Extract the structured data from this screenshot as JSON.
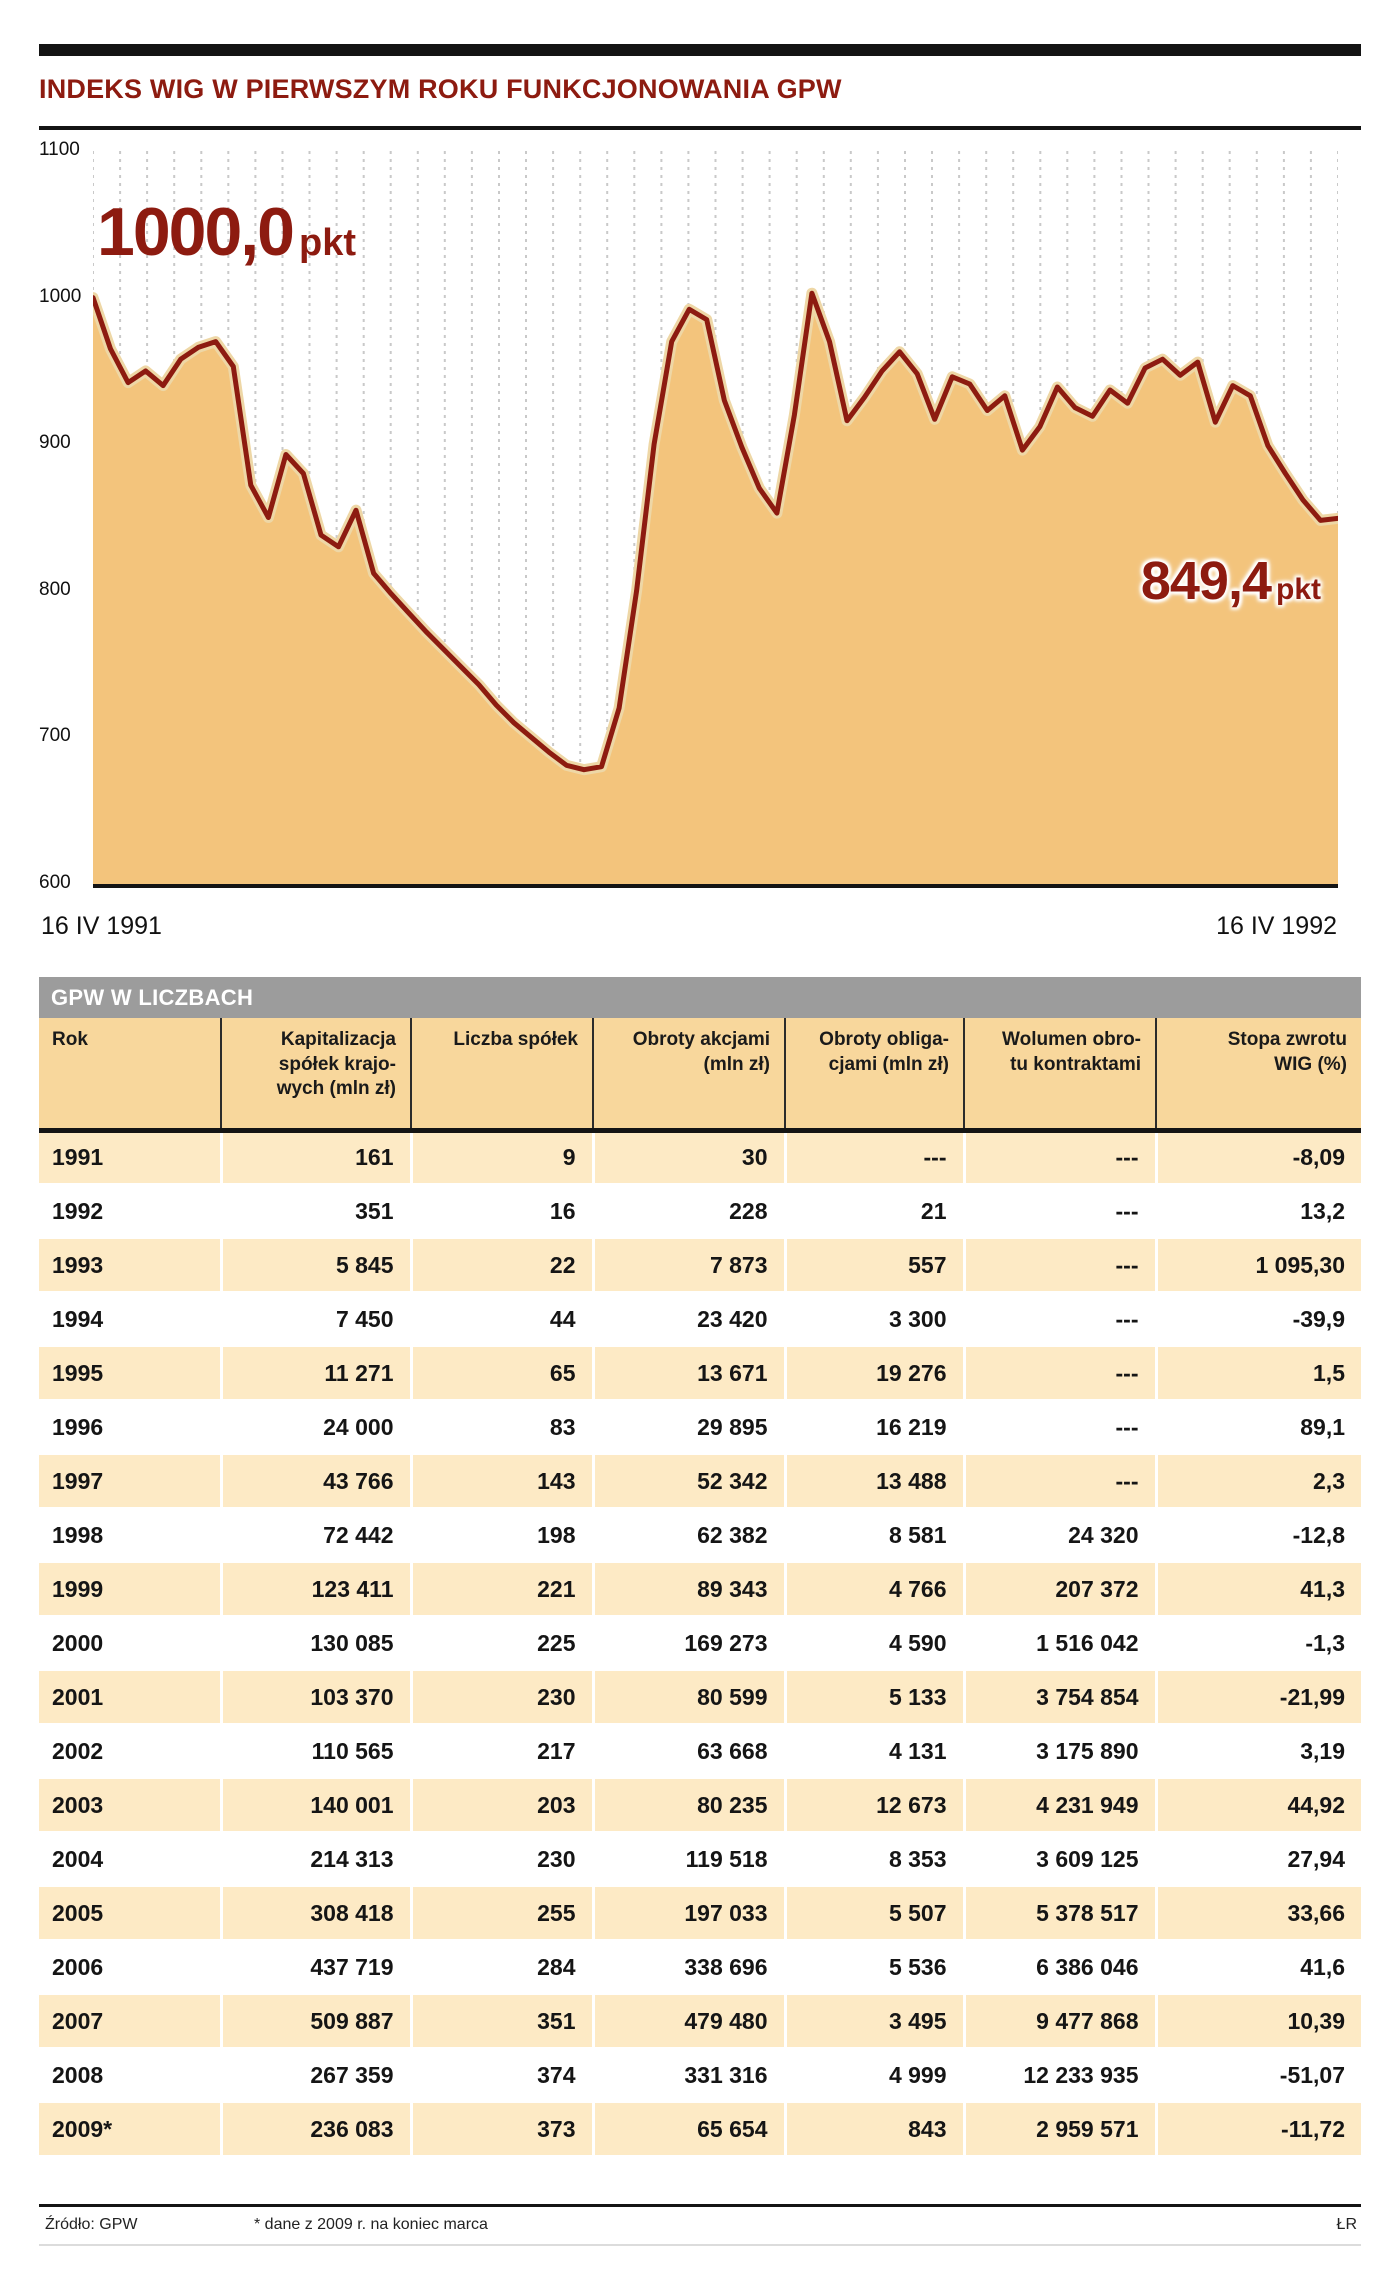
{
  "page": {
    "title": "INDEKS WIG W PIERWSZYM ROKU FUNKCJONOWANIA GPW",
    "accent_color": "#8d1b10"
  },
  "chart": {
    "big_label_value": "1000,0",
    "big_label_unit": "pkt",
    "end_label_value": "849,4",
    "end_label_unit": "pkt",
    "x_start_label": "16 IV 1991",
    "x_end_label": "16 IV 1992",
    "colors": {
      "area": "#f3c47c",
      "line": "#8d1b10",
      "halo": "#eed7a6",
      "grid": "#c9c9c9"
    }
  },
  "chart_data": {
    "type": "area",
    "title": "Indeks WIG w pierwszym roku funkcjonowania GPW",
    "xlabel": "",
    "ylabel": "pkt",
    "ylim": [
      600,
      1100
    ],
    "yticks": [
      1100,
      1000,
      900,
      800,
      700,
      600
    ],
    "x_range": [
      "16 IV 1991",
      "16 IV 1992"
    ],
    "start_value": 1000.0,
    "end_value": 849.4,
    "unit": "pkt",
    "grid": "vertical-dashed",
    "legend": "none",
    "values": [
      1000,
      965,
      942,
      950,
      940,
      958,
      966,
      970,
      953,
      872,
      850,
      893,
      880,
      838,
      830,
      855,
      812,
      798,
      785,
      772,
      760,
      748,
      736,
      722,
      710,
      700,
      690,
      681,
      678,
      680,
      720,
      800,
      900,
      970,
      992,
      985,
      930,
      898,
      870,
      853,
      920,
      1003,
      970,
      916,
      932,
      950,
      963,
      948,
      917,
      946,
      941,
      923,
      933,
      896,
      912,
      939,
      925,
      919,
      937,
      928,
      952,
      958,
      947,
      956,
      915,
      940,
      933,
      899,
      880,
      862,
      848,
      849.4
    ]
  },
  "table": {
    "section_title": "GPW W LICZBACH",
    "headers": [
      "Rok",
      "Kapitalizacja\nspółek krajo-\nwych (mln zł)",
      "Liczba spółek",
      "Obroty akcjami\n(mln zł)",
      "Obroty obliga-\ncjami (mln zł)",
      "Wolumen obro-\ntu kontraktami",
      "Stopa zwrotu\nWIG (%)"
    ],
    "rows": [
      [
        "1991",
        "161",
        "9",
        "30",
        "---",
        "---",
        "-8,09"
      ],
      [
        "1992",
        "351",
        "16",
        "228",
        "21",
        "---",
        "13,2"
      ],
      [
        "1993",
        "5 845",
        "22",
        "7 873",
        "557",
        "---",
        "1 095,30"
      ],
      [
        "1994",
        "7 450",
        "44",
        "23 420",
        "3 300",
        "---",
        "-39,9"
      ],
      [
        "1995",
        "11 271",
        "65",
        "13 671",
        "19 276",
        "---",
        "1,5"
      ],
      [
        "1996",
        "24 000",
        "83",
        "29 895",
        "16 219",
        "---",
        "89,1"
      ],
      [
        "1997",
        "43 766",
        "143",
        "52 342",
        "13 488",
        "---",
        "2,3"
      ],
      [
        "1998",
        "72 442",
        "198",
        "62 382",
        "8 581",
        "24 320",
        "-12,8"
      ],
      [
        "1999",
        "123 411",
        "221",
        "89 343",
        "4 766",
        "207 372",
        "41,3"
      ],
      [
        "2000",
        "130 085",
        "225",
        "169 273",
        "4 590",
        "1 516 042",
        "-1,3"
      ],
      [
        "2001",
        "103 370",
        "230",
        "80 599",
        "5 133",
        "3 754 854",
        "-21,99"
      ],
      [
        "2002",
        "110 565",
        "217",
        "63 668",
        "4 131",
        "3 175 890",
        "3,19"
      ],
      [
        "2003",
        "140 001",
        "203",
        "80 235",
        "12 673",
        "4 231 949",
        "44,92"
      ],
      [
        "2004",
        "214 313",
        "230",
        "119 518",
        "8 353",
        "3 609 125",
        "27,94"
      ],
      [
        "2005",
        "308 418",
        "255",
        "197 033",
        "5 507",
        "5 378 517",
        "33,66"
      ],
      [
        "2006",
        "437 719",
        "284",
        "338 696",
        "5 536",
        "6 386 046",
        "41,6"
      ],
      [
        "2007",
        "509 887",
        "351",
        "479 480",
        "3 495",
        "9 477 868",
        "10,39"
      ],
      [
        "2008",
        "267 359",
        "374",
        "331 316",
        "4 999",
        "12 233 935",
        "-51,07"
      ],
      [
        "2009*",
        "236 083",
        "373",
        "65 654",
        "843",
        "2 959 571",
        "-11,72"
      ]
    ]
  },
  "footer": {
    "source": "Źródło: GPW",
    "note": "* dane z 2009 r. na koniec marca",
    "credit": "ŁR"
  }
}
